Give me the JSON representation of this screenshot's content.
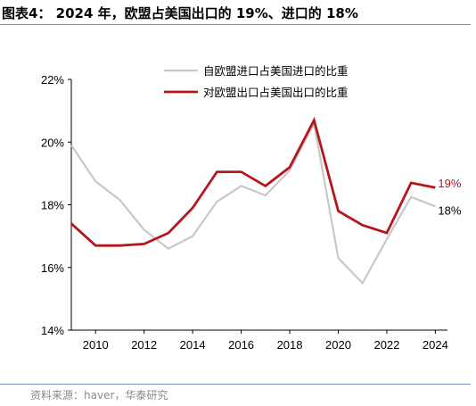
{
  "title": "图表4：  2024 年，欧盟占美国出口的 19%、进口的 18%",
  "source": "资料来源：haver，华泰研究",
  "chart_data": {
    "type": "line",
    "x": [
      2009,
      2010,
      2011,
      2012,
      2013,
      2014,
      2015,
      2016,
      2017,
      2018,
      2019,
      2020,
      2021,
      2022,
      2023,
      2024
    ],
    "xticks": [
      "2010",
      "2012",
      "2014",
      "2016",
      "2018",
      "2020",
      "2022",
      "2024"
    ],
    "yticks": [
      "14%",
      "16%",
      "18%",
      "20%",
      "22%"
    ],
    "ylim": [
      14,
      22
    ],
    "xlim": [
      2009,
      2024.5
    ],
    "grid": false,
    "legend_position": "top-right",
    "series": [
      {
        "name": "自欧盟进口占美国进口的比重",
        "color": "#c8c8c8",
        "values": [
          19.9,
          18.75,
          18.15,
          17.2,
          16.6,
          17.0,
          18.1,
          18.6,
          18.3,
          19.1,
          20.6,
          16.3,
          15.5,
          16.9,
          18.25,
          17.95
        ],
        "end_label": "18%"
      },
      {
        "name": "对欧盟出口占美国出口的比重",
        "color": "#b5161c",
        "values": [
          17.4,
          16.7,
          16.7,
          16.75,
          17.1,
          17.9,
          19.05,
          19.05,
          18.6,
          19.2,
          20.7,
          17.8,
          17.35,
          17.1,
          18.7,
          18.55
        ],
        "end_label": "19%"
      }
    ]
  }
}
